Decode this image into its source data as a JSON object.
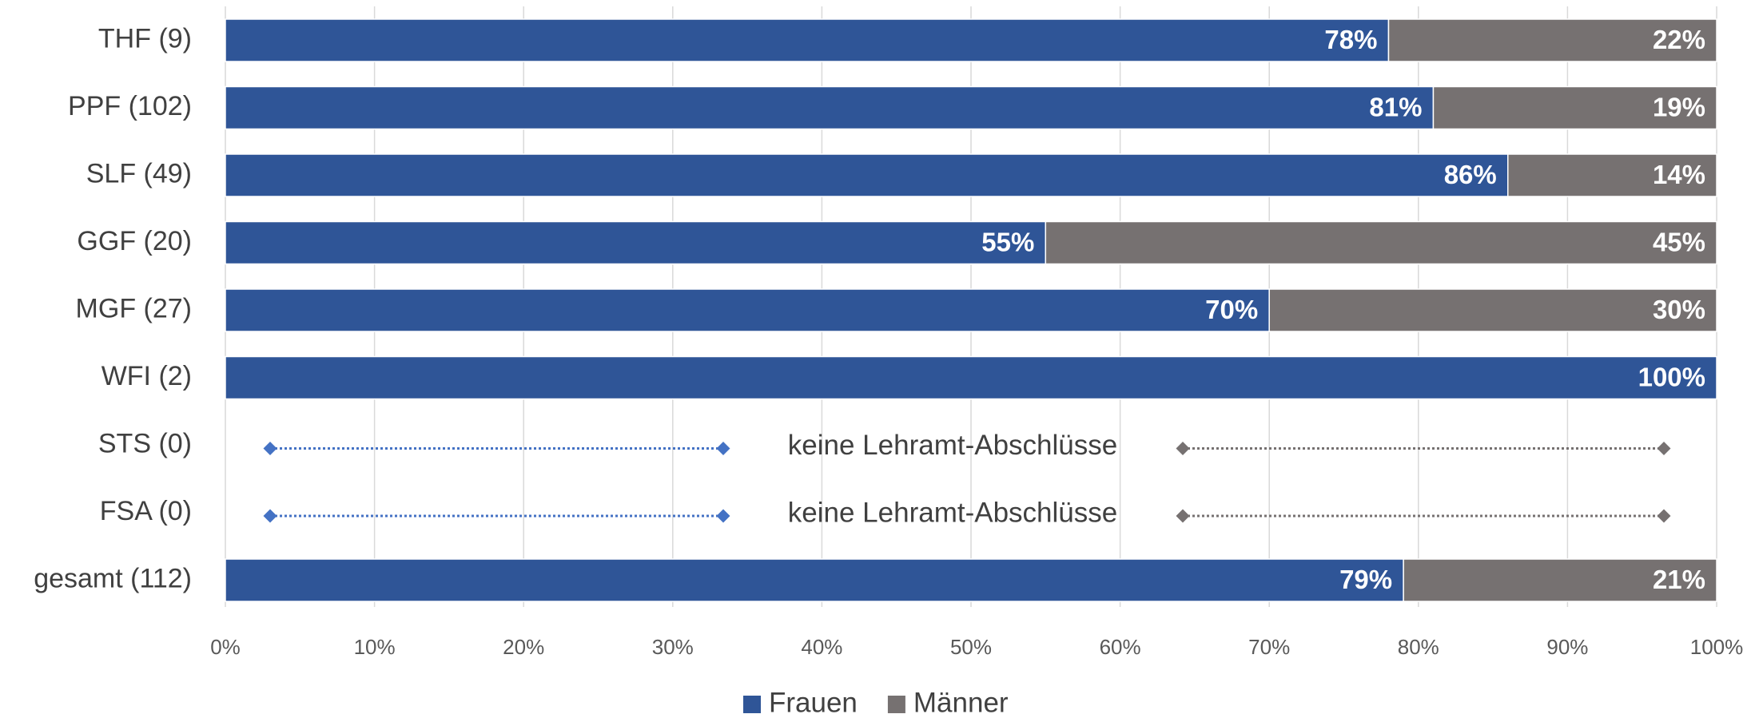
{
  "chart_data": {
    "type": "stacked-barh",
    "categories": [
      "THF (9)",
      "PPF (102)",
      "SLF (49)",
      "GGF (20)",
      "MGF (27)",
      "WFI (2)",
      "STS (0)",
      "FSA (0)",
      "gesamt (112)"
    ],
    "series": [
      {
        "name": "Frauen",
        "color": "#2f5597",
        "values": [
          78,
          81,
          86,
          55,
          70,
          100,
          null,
          null,
          79
        ],
        "value_labels": [
          "78%",
          "81%",
          "86%",
          "55%",
          "70%",
          "100%",
          null,
          null,
          "79%"
        ]
      },
      {
        "name": "Männer",
        "color": "#767171",
        "values": [
          22,
          19,
          14,
          45,
          30,
          null,
          null,
          null,
          21
        ],
        "value_labels": [
          "22%",
          "19%",
          "14%",
          "45%",
          "30%",
          null,
          null,
          null,
          "21%"
        ]
      }
    ],
    "annotations": [
      "keine Lehramt-Abschlüsse",
      "keine Lehramt-Abschlüsse"
    ],
    "xlim": [
      0,
      100
    ],
    "xticks": [
      {
        "value": 0,
        "label": "0%"
      },
      {
        "value": 10,
        "label": "10%"
      },
      {
        "value": 20,
        "label": "20%"
      },
      {
        "value": 30,
        "label": "30%"
      },
      {
        "value": 40,
        "label": "40%"
      },
      {
        "value": 50,
        "label": "50%"
      },
      {
        "value": 60,
        "label": "60%"
      },
      {
        "value": 70,
        "label": "70%"
      },
      {
        "value": 80,
        "label": "80%"
      },
      {
        "value": 90,
        "label": "90%"
      },
      {
        "value": 100,
        "label": "100%"
      }
    ],
    "grid": true,
    "legend": "bottom"
  }
}
